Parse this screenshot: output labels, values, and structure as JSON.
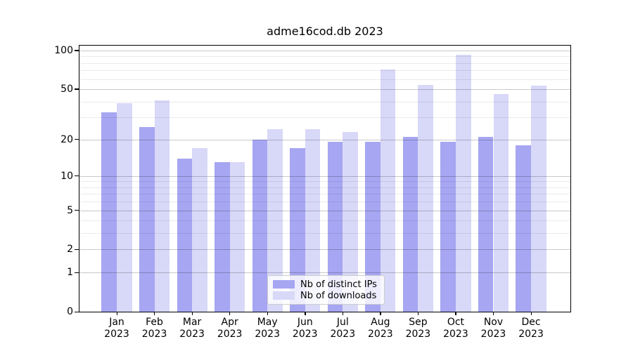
{
  "chart_data": {
    "type": "bar",
    "title": "adme16cod.db 2023",
    "x_months": [
      "Jan",
      "Feb",
      "Mar",
      "Apr",
      "May",
      "Jun",
      "Jul",
      "Aug",
      "Sep",
      "Oct",
      "Nov",
      "Dec"
    ],
    "x_year": "2023",
    "series": [
      {
        "name": "Nb of distinct IPs",
        "color": "#a6a6f2",
        "values": [
          33,
          25,
          14,
          13,
          20,
          17,
          19,
          19,
          21,
          19,
          21,
          18
        ]
      },
      {
        "name": "Nb of downloads",
        "color": "#d8d8f8",
        "values": [
          39,
          41,
          17,
          13,
          24,
          24,
          23,
          71,
          54,
          93,
          46,
          53
        ]
      }
    ],
    "yscale": "log10(1+v)",
    "ylim": [
      0,
      109
    ],
    "yticks": [
      0,
      1,
      2,
      5,
      10,
      20,
      50,
      100
    ],
    "minor_gridlines": [
      3,
      4,
      6,
      7,
      8,
      9,
      30,
      40,
      60,
      70,
      80,
      90
    ],
    "grid": "on",
    "legend_position": "lower center"
  }
}
